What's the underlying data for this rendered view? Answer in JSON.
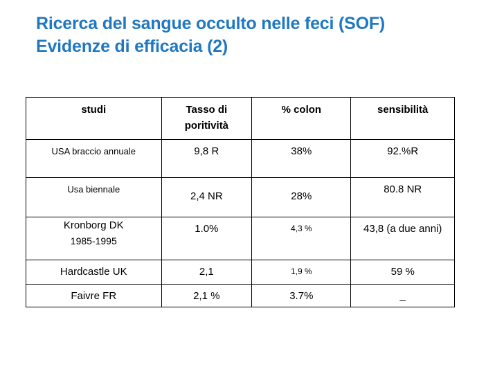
{
  "title": {
    "line1": "Ricerca del sangue occulto nelle feci (SOF)",
    "line2": "Evidenze di efficacia (2)"
  },
  "table": {
    "headers": {
      "studi": "studi",
      "tasso_line1": "Tasso di",
      "tasso_line2": "poritività",
      "colon": "% colon",
      "sensibilita": "sensibilità"
    },
    "rows": [
      {
        "studi": "USA braccio annuale",
        "tasso": "9,8 R",
        "colon": "38%",
        "sensibilita": "92.%R"
      },
      {
        "studi": "Usa biennale",
        "tasso": "2,4 NR",
        "colon": "28%",
        "sensibilita": "80.8 NR"
      },
      {
        "studi_line1": "Kronborg DK",
        "studi_line2": "1985-1995",
        "tasso": "1.0%",
        "colon": "4,3 %",
        "sensibilita": "43,8 (a due anni)"
      },
      {
        "studi": "Hardcastle UK",
        "tasso": "2,1",
        "colon": "1,9 %",
        "sensibilita": "59 %"
      },
      {
        "studi": "Faivre FR",
        "tasso": "2,1 %",
        "colon": "3.7%",
        "sensibilita": "_"
      }
    ]
  }
}
